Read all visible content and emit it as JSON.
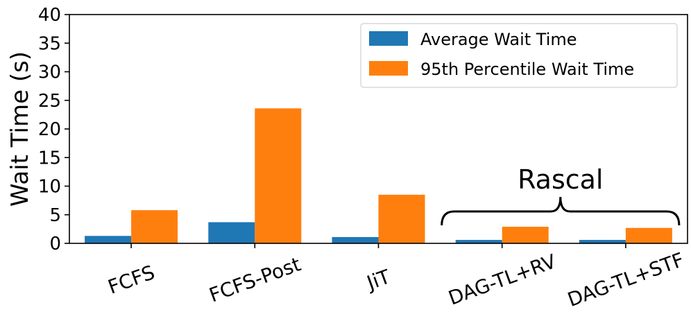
{
  "chart_data": {
    "type": "bar",
    "title": "",
    "xlabel": "",
    "ylabel": "Wait Time (s)",
    "ylim": [
      0,
      40
    ],
    "yticks": [
      0,
      5,
      10,
      15,
      20,
      25,
      30,
      35,
      40
    ],
    "grid": false,
    "legend_position": "top-right",
    "categories": [
      "FCFS",
      "FCFS-Post",
      "JiT",
      "DAG-TL+RV",
      "DAG-TL+STF"
    ],
    "series": [
      {
        "name": "Average Wait Time",
        "color": "#1f77b4",
        "values": [
          1.3,
          3.7,
          1.1,
          0.6,
          0.6
        ]
      },
      {
        "name": "95th Percentile Wait Time",
        "color": "#ff7f0e",
        "values": [
          5.8,
          23.6,
          8.5,
          2.9,
          2.7
        ]
      }
    ],
    "annotation": {
      "text": "Rascal",
      "spans_categories": [
        "DAG-TL+RV",
        "DAG-TL+STF"
      ]
    }
  }
}
